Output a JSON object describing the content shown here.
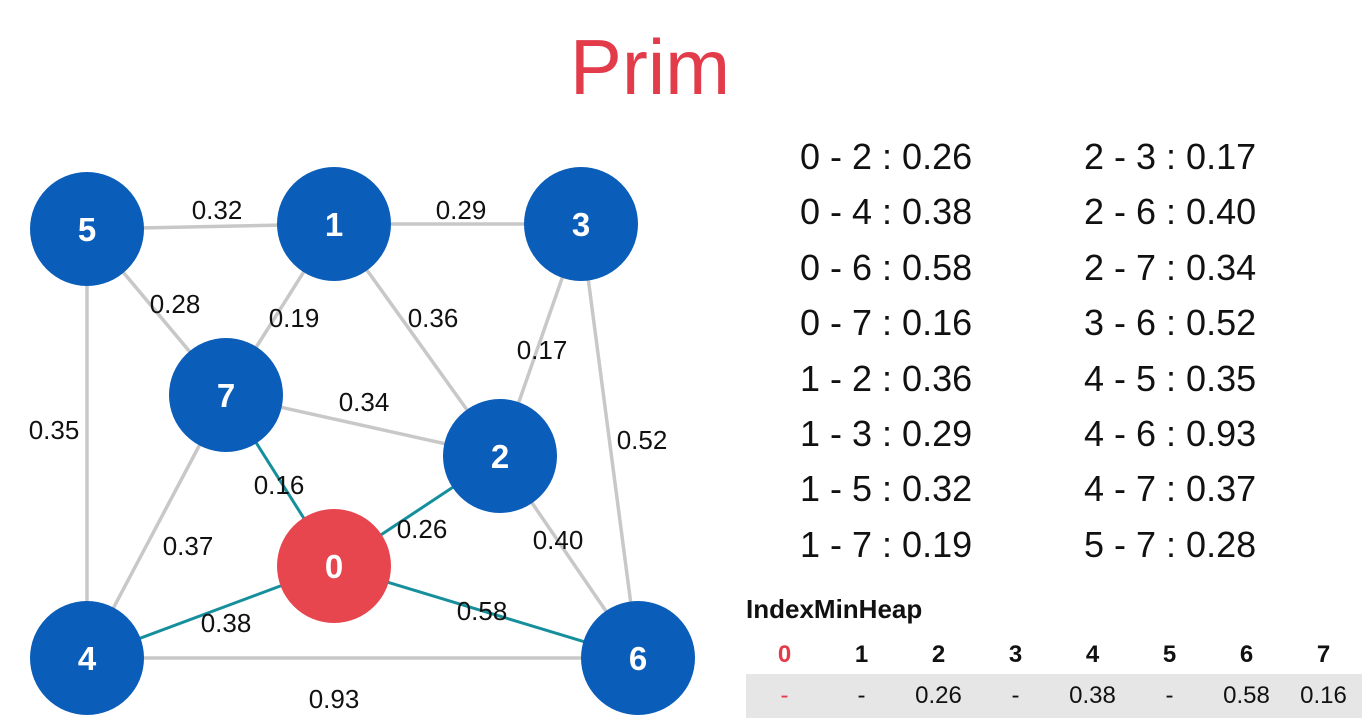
{
  "title": "Prim",
  "colors": {
    "node": "#0a5db8",
    "start_node": "#e8464f",
    "edge": "#c8c8c8",
    "mst_edge": "#168f9c",
    "title": "#e23b4a"
  },
  "graph": {
    "nodes": [
      {
        "id": "0",
        "label": "0",
        "highlight": true
      },
      {
        "id": "1",
        "label": "1",
        "highlight": false
      },
      {
        "id": "2",
        "label": "2",
        "highlight": false
      },
      {
        "id": "3",
        "label": "3",
        "highlight": false
      },
      {
        "id": "4",
        "label": "4",
        "highlight": false
      },
      {
        "id": "5",
        "label": "5",
        "highlight": false
      },
      {
        "id": "6",
        "label": "6",
        "highlight": false
      },
      {
        "id": "7",
        "label": "7",
        "highlight": false
      }
    ],
    "edges": [
      {
        "from": "5",
        "to": "1",
        "weight": "0.32",
        "mst": false
      },
      {
        "from": "1",
        "to": "3",
        "weight": "0.29",
        "mst": false
      },
      {
        "from": "5",
        "to": "7",
        "weight": "0.28",
        "mst": false
      },
      {
        "from": "1",
        "to": "7",
        "weight": "0.19",
        "mst": false
      },
      {
        "from": "1",
        "to": "2",
        "weight": "0.36",
        "mst": false
      },
      {
        "from": "3",
        "to": "2",
        "weight": "0.17",
        "mst": false
      },
      {
        "from": "5",
        "to": "4",
        "weight": "0.35",
        "mst": false
      },
      {
        "from": "7",
        "to": "2",
        "weight": "0.34",
        "mst": false
      },
      {
        "from": "3",
        "to": "6",
        "weight": "0.52",
        "mst": false
      },
      {
        "from": "7",
        "to": "0",
        "weight": "0.16",
        "mst": true
      },
      {
        "from": "0",
        "to": "2",
        "weight": "0.26",
        "mst": true
      },
      {
        "from": "7",
        "to": "4",
        "weight": "0.37",
        "mst": false
      },
      {
        "from": "2",
        "to": "6",
        "weight": "0.40",
        "mst": false
      },
      {
        "from": "0",
        "to": "4",
        "weight": "0.38",
        "mst": true
      },
      {
        "from": "0",
        "to": "6",
        "weight": "0.58",
        "mst": true
      },
      {
        "from": "4",
        "to": "6",
        "weight": "0.93",
        "mst": false
      }
    ]
  },
  "edge_list": {
    "left": [
      "0 - 2 : 0.26",
      "0 - 4 : 0.38",
      "0 - 6 : 0.58",
      "0 - 7 : 0.16",
      "1 - 2 : 0.36",
      "1 - 3 : 0.29",
      "1 - 5 : 0.32",
      "1 - 7 : 0.19"
    ],
    "right": [
      "2 - 3 : 0.17",
      "2 - 6 : 0.40",
      "2 - 7 : 0.34",
      "3 - 6 : 0.52",
      "4 - 5 : 0.35",
      "4 - 6 : 0.93",
      "4 - 7 : 0.37",
      "5 - 7 : 0.28"
    ]
  },
  "heap": {
    "title": "IndexMinHeap",
    "indices": [
      "0",
      "1",
      "2",
      "3",
      "4",
      "5",
      "6",
      "7"
    ],
    "values": [
      "-",
      "-",
      "0.26",
      "-",
      "0.38",
      "-",
      "0.58",
      "0.16"
    ],
    "active_index": "0"
  }
}
